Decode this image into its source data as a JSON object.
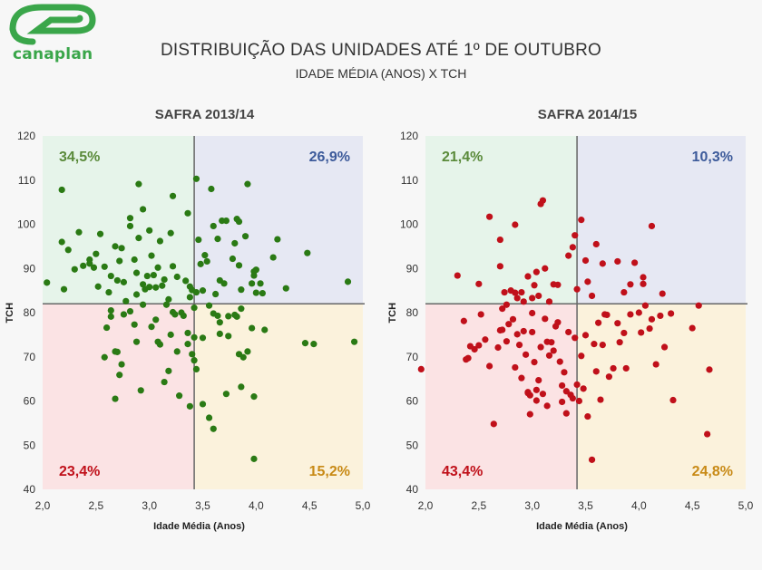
{
  "logo": {
    "name": "canaplan"
  },
  "title": "DISTRIBUIÇÃO DAS UNIDADES ATÉ 1º DE OUTUBRO",
  "subtitle": "IDADE MÉDIA (ANOS) X TCH",
  "colors": {
    "green": "#2a7a14",
    "red": "#c0101a",
    "q_top_left": "#e6f4ea",
    "q_top_right": "#e6e8f3",
    "q_bottom_left": "#fbe3e4",
    "q_bottom_right": "#fbf2dc",
    "label_green": "#5a8a3a",
    "label_blue": "#3c5a9a",
    "label_red": "#c0101a",
    "label_orange": "#c88a16"
  },
  "chart_data": [
    {
      "type": "scatter",
      "title": "SAFRA 2013/14",
      "xlabel": "Idade Média (Anos)",
      "ylabel": "TCH",
      "xlim": [
        2.0,
        5.0
      ],
      "ylim": [
        40,
        120
      ],
      "xticks": [
        "2,0",
        "2,5",
        "3,0",
        "3,5",
        "4,0",
        "4,5",
        "5,0"
      ],
      "yticks": [
        "40",
        "50",
        "60",
        "70",
        "80",
        "90",
        "100",
        "110",
        "120"
      ],
      "x_divider": 3.42,
      "y_divider": 82,
      "marker_color": "#2a7a14",
      "quadrant_labels": {
        "top_left": "34,5%",
        "top_right": "26,9%",
        "bottom_left": "23,4%",
        "bottom_right": "15,2%"
      },
      "points": [
        [
          2.04,
          86.8
        ],
        [
          2.18,
          107.8
        ],
        [
          2.18,
          96
        ],
        [
          2.2,
          85.3
        ],
        [
          2.24,
          94.2
        ],
        [
          2.3,
          89.8
        ],
        [
          2.34,
          98.2
        ],
        [
          2.38,
          90.6
        ],
        [
          2.44,
          92
        ],
        [
          2.44,
          91.1
        ],
        [
          2.48,
          90.2
        ],
        [
          2.5,
          93.3
        ],
        [
          2.52,
          85.9
        ],
        [
          2.54,
          97.8
        ],
        [
          2.58,
          90.4
        ],
        [
          2.62,
          84.6
        ],
        [
          2.64,
          88.3
        ],
        [
          2.68,
          95
        ],
        [
          2.7,
          87.3
        ],
        [
          2.72,
          91.7
        ],
        [
          2.74,
          94.6
        ],
        [
          2.76,
          86.9
        ],
        [
          2.78,
          82.6
        ],
        [
          2.82,
          99.6
        ],
        [
          2.82,
          101.4
        ],
        [
          2.86,
          92
        ],
        [
          2.88,
          84.1
        ],
        [
          2.88,
          89
        ],
        [
          2.9,
          109.1
        ],
        [
          2.9,
          96.9
        ],
        [
          2.94,
          86.4
        ],
        [
          2.94,
          103.4
        ],
        [
          2.96,
          85.3
        ],
        [
          2.98,
          88.3
        ],
        [
          3.0,
          98.6
        ],
        [
          3.0,
          85.8
        ],
        [
          3.02,
          92.9
        ],
        [
          3.04,
          88.5
        ],
        [
          3.06,
          85.7
        ],
        [
          3.08,
          90.2
        ],
        [
          3.1,
          96.2
        ],
        [
          3.12,
          86.1
        ],
        [
          3.14,
          87.5
        ],
        [
          3.16,
          81.8
        ],
        [
          3.18,
          83
        ],
        [
          3.2,
          98
        ],
        [
          3.22,
          106.4
        ],
        [
          3.22,
          90.5
        ],
        [
          3.26,
          88.1
        ],
        [
          3.3,
          80
        ],
        [
          3.34,
          87.2
        ],
        [
          3.36,
          102.5
        ],
        [
          3.38,
          83.5
        ],
        [
          3.38,
          85.9
        ],
        [
          3.4,
          85.1
        ],
        [
          3.42,
          81.1
        ],
        [
          3.44,
          110.3
        ],
        [
          3.44,
          84.6
        ],
        [
          3.46,
          96.5
        ],
        [
          3.48,
          91
        ],
        [
          3.5,
          85
        ],
        [
          3.52,
          93
        ],
        [
          3.54,
          91.6
        ],
        [
          3.56,
          81.6
        ],
        [
          3.58,
          108
        ],
        [
          3.6,
          99.6
        ],
        [
          3.62,
          84.2
        ],
        [
          3.64,
          96.7
        ],
        [
          3.66,
          87.3
        ],
        [
          3.68,
          100.8
        ],
        [
          3.7,
          86.6
        ],
        [
          3.72,
          100.8
        ],
        [
          3.74,
          79.2
        ],
        [
          3.78,
          92.2
        ],
        [
          3.8,
          95.7
        ],
        [
          3.82,
          101.2
        ],
        [
          3.84,
          100.6
        ],
        [
          3.84,
          90.7
        ],
        [
          3.86,
          85.2
        ],
        [
          3.86,
          80.9
        ],
        [
          3.9,
          97.3
        ],
        [
          3.92,
          109.1
        ],
        [
          3.96,
          86.6
        ],
        [
          3.98,
          88.4
        ],
        [
          3.98,
          89.3
        ],
        [
          4.0,
          84.5
        ],
        [
          4.0,
          89.7
        ],
        [
          4.04,
          86.6
        ],
        [
          4.06,
          84.4
        ],
        [
          4.16,
          92.5
        ],
        [
          4.2,
          96.6
        ],
        [
          4.28,
          85.5
        ],
        [
          4.48,
          93.5
        ],
        [
          4.86,
          87
        ],
        [
          2.6,
          76.6
        ],
        [
          2.64,
          79.1
        ],
        [
          2.64,
          80.5
        ],
        [
          2.68,
          71.2
        ],
        [
          2.7,
          71.1
        ],
        [
          2.72,
          65.9
        ],
        [
          2.74,
          68.3
        ],
        [
          2.76,
          79.6
        ],
        [
          2.82,
          80.3
        ],
        [
          2.86,
          77.3
        ],
        [
          2.88,
          73.4
        ],
        [
          2.92,
          62.4
        ],
        [
          2.94,
          81.8
        ],
        [
          3.02,
          76.8
        ],
        [
          3.06,
          78.4
        ],
        [
          3.08,
          73.4
        ],
        [
          3.1,
          72.8
        ],
        [
          3.14,
          64.3
        ],
        [
          3.18,
          66.8
        ],
        [
          3.2,
          75
        ],
        [
          3.22,
          80.1
        ],
        [
          3.24,
          79.6
        ],
        [
          3.26,
          71.2
        ],
        [
          3.28,
          61.2
        ],
        [
          3.32,
          79.3
        ],
        [
          3.36,
          72.9
        ],
        [
          3.36,
          75.4
        ],
        [
          3.4,
          70.6
        ],
        [
          3.42,
          69.2
        ],
        [
          3.42,
          74.4
        ],
        [
          3.5,
          59.3
        ],
        [
          3.56,
          56.2
        ],
        [
          3.6,
          53.7
        ],
        [
          3.64,
          79.3
        ],
        [
          3.66,
          75.2
        ],
        [
          3.72,
          61.6
        ],
        [
          3.74,
          74.7
        ],
        [
          3.8,
          79.5
        ],
        [
          3.84,
          70.6
        ],
        [
          3.86,
          63.2
        ],
        [
          3.88,
          69.9
        ],
        [
          3.92,
          71.2
        ],
        [
          3.96,
          76.5
        ],
        [
          3.98,
          46.9
        ],
        [
          3.98,
          61
        ],
        [
          4.08,
          76.1
        ],
        [
          4.46,
          73.1
        ],
        [
          4.54,
          72.9
        ],
        [
          4.92,
          73.4
        ],
        [
          2.58,
          69.9
        ],
        [
          2.68,
          60.5
        ],
        [
          3.38,
          58.8
        ],
        [
          3.44,
          67.2
        ],
        [
          3.5,
          74.3
        ],
        [
          3.6,
          79.8
        ],
        [
          3.66,
          77.8
        ],
        [
          3.82,
          79.1
        ]
      ]
    },
    {
      "type": "scatter",
      "title": "SAFRA 2014/15",
      "xlabel": "Idade Média (Anos)",
      "ylabel": "TCH",
      "xlim": [
        2.0,
        5.0
      ],
      "ylim": [
        40,
        120
      ],
      "xticks": [
        "2,0",
        "2,5",
        "3,0",
        "3,5",
        "4,0",
        "4,5",
        "5,0"
      ],
      "yticks": [
        "40",
        "50",
        "60",
        "70",
        "80",
        "90",
        "100",
        "110",
        "120"
      ],
      "x_divider": 3.42,
      "y_divider": 82,
      "marker_color": "#c0101a",
      "quadrant_labels": {
        "top_left": "21,4%",
        "top_right": "10,3%",
        "bottom_left": "43,4%",
        "bottom_right": "24,8%"
      },
      "points": [
        [
          2.3,
          88.4
        ],
        [
          2.5,
          86.5
        ],
        [
          2.6,
          101.7
        ],
        [
          2.7,
          96.5
        ],
        [
          2.7,
          90.5
        ],
        [
          2.74,
          84.6
        ],
        [
          2.76,
          81.8
        ],
        [
          2.8,
          85
        ],
        [
          2.84,
          99.9
        ],
        [
          2.84,
          84.5
        ],
        [
          2.86,
          83.3
        ],
        [
          2.9,
          84.6
        ],
        [
          2.92,
          82.5
        ],
        [
          2.96,
          88.2
        ],
        [
          3.0,
          83.3
        ],
        [
          3.02,
          86.2
        ],
        [
          3.04,
          89.2
        ],
        [
          3.06,
          83.8
        ],
        [
          3.08,
          104.6
        ],
        [
          3.1,
          105.4
        ],
        [
          3.12,
          90
        ],
        [
          3.16,
          82.5
        ],
        [
          3.2,
          86.4
        ],
        [
          3.24,
          86.3
        ],
        [
          3.34,
          92.9
        ],
        [
          3.38,
          94.8
        ],
        [
          3.4,
          97.5
        ],
        [
          3.42,
          85.3
        ],
        [
          3.46,
          101
        ],
        [
          3.5,
          91.8
        ],
        [
          3.52,
          87
        ],
        [
          3.56,
          83.8
        ],
        [
          3.6,
          95.5
        ],
        [
          3.66,
          91.1
        ],
        [
          3.8,
          91.6
        ],
        [
          3.86,
          84.6
        ],
        [
          3.92,
          86.4
        ],
        [
          3.96,
          91.3
        ],
        [
          4.04,
          86.5
        ],
        [
          4.04,
          88
        ],
        [
          4.12,
          99.6
        ],
        [
          4.22,
          84.3
        ],
        [
          1.96,
          67.2
        ],
        [
          2.36,
          78.1
        ],
        [
          2.38,
          69.4
        ],
        [
          2.4,
          69.7
        ],
        [
          2.42,
          72.4
        ],
        [
          2.46,
          71.7
        ],
        [
          2.5,
          72.6
        ],
        [
          2.52,
          79.6
        ],
        [
          2.56,
          73.9
        ],
        [
          2.6,
          67.9
        ],
        [
          2.64,
          54.8
        ],
        [
          2.68,
          72.1
        ],
        [
          2.7,
          76
        ],
        [
          2.72,
          80.9
        ],
        [
          2.72,
          76.1
        ],
        [
          2.76,
          73.5
        ],
        [
          2.78,
          77.4
        ],
        [
          2.82,
          78.5
        ],
        [
          2.84,
          67.6
        ],
        [
          2.86,
          75.1
        ],
        [
          2.88,
          72.7
        ],
        [
          2.9,
          65.2
        ],
        [
          2.92,
          75.8
        ],
        [
          2.94,
          70.5
        ],
        [
          2.96,
          62
        ],
        [
          2.96,
          61.8
        ],
        [
          2.98,
          57
        ],
        [
          3.0,
          75.6
        ],
        [
          3.0,
          79.9
        ],
        [
          3.02,
          68.8
        ],
        [
          3.04,
          62.5
        ],
        [
          3.06,
          64.7
        ],
        [
          3.08,
          72.2
        ],
        [
          3.1,
          61.6
        ],
        [
          3.12,
          78.6
        ],
        [
          3.14,
          58.9
        ],
        [
          3.16,
          70.3
        ],
        [
          3.18,
          73.3
        ],
        [
          3.2,
          71.4
        ],
        [
          3.22,
          76.9
        ],
        [
          3.24,
          77.8
        ],
        [
          3.26,
          68.9
        ],
        [
          3.28,
          63.5
        ],
        [
          3.3,
          66.5
        ],
        [
          3.32,
          57.2
        ],
        [
          3.34,
          75.6
        ],
        [
          3.36,
          61.4
        ],
        [
          3.38,
          60.6
        ],
        [
          3.4,
          74.3
        ],
        [
          3.42,
          63.7
        ],
        [
          3.44,
          60
        ],
        [
          3.46,
          70.2
        ],
        [
          3.48,
          62.8
        ],
        [
          3.52,
          56.5
        ],
        [
          3.56,
          46.7
        ],
        [
          3.58,
          72.9
        ],
        [
          3.6,
          66.7
        ],
        [
          3.62,
          77.7
        ],
        [
          3.64,
          60.3
        ],
        [
          3.66,
          72.7
        ],
        [
          3.7,
          79.5
        ],
        [
          3.72,
          65.5
        ],
        [
          3.76,
          67.4
        ],
        [
          3.8,
          77.6
        ],
        [
          3.82,
          73.3
        ],
        [
          3.86,
          75.4
        ],
        [
          3.88,
          67.4
        ],
        [
          3.92,
          79.6
        ],
        [
          4.0,
          80
        ],
        [
          4.02,
          75.5
        ],
        [
          4.06,
          81.6
        ],
        [
          4.1,
          76.4
        ],
        [
          4.12,
          78.5
        ],
        [
          4.16,
          68.3
        ],
        [
          4.2,
          79.3
        ],
        [
          4.24,
          72.2
        ],
        [
          4.3,
          79.8
        ],
        [
          4.32,
          60.2
        ],
        [
          4.5,
          76.5
        ],
        [
          4.56,
          81.6
        ],
        [
          4.66,
          67.1
        ],
        [
          4.64,
          52.5
        ],
        [
          2.98,
          61.3
        ],
        [
          3.04,
          60.1
        ],
        [
          3.14,
          73.4
        ],
        [
          3.28,
          59.8
        ],
        [
          3.32,
          62.2
        ],
        [
          3.5,
          74.9
        ],
        [
          3.68,
          79.6
        ]
      ]
    }
  ]
}
